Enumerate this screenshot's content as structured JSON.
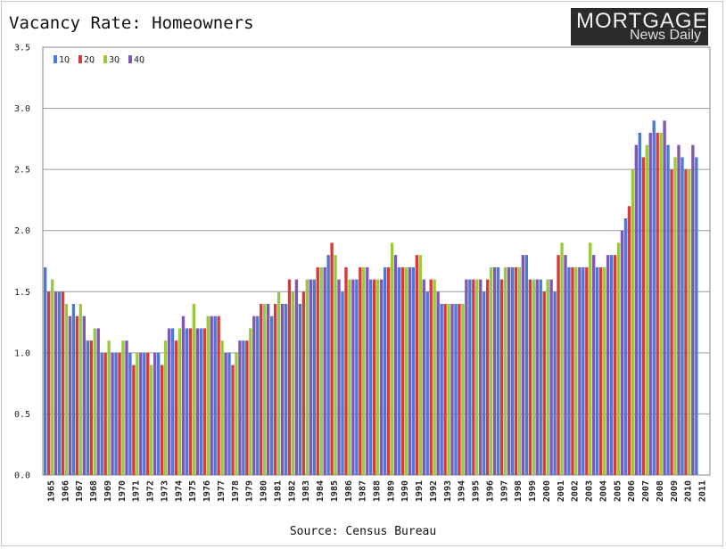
{
  "title": "Vacancy Rate: Homeowners",
  "logo": {
    "line1": "MORTGAGE",
    "line2": "News Daily"
  },
  "source": "Source: Census Bureau",
  "colors": {
    "1Q": "#4a7ad6",
    "2Q": "#d63a3a",
    "3Q": "#9cc83c",
    "4Q": "#7e57b8",
    "grid": "#9a9a9a",
    "axis": "#888888"
  },
  "chart_data": {
    "type": "bar",
    "title": "Vacancy Rate: Homeowners",
    "xlabel": "",
    "ylabel": "",
    "ylim": [
      0,
      3.5
    ],
    "yticks": [
      "0.0",
      "0.5",
      "1.0",
      "1.5",
      "2.0",
      "2.5",
      "3.0",
      "3.5"
    ],
    "grid": true,
    "legend_position": "top-left",
    "categories": [
      "1965",
      "1966",
      "1967",
      "1968",
      "1969",
      "1970",
      "1971",
      "1972",
      "1973",
      "1974",
      "1975",
      "1976",
      "1977",
      "1978",
      "1979",
      "1980",
      "1981",
      "1982",
      "1983",
      "1984",
      "1985",
      "1986",
      "1987",
      "1988",
      "1989",
      "1990",
      "1991",
      "1992",
      "1993",
      "1994",
      "1995",
      "1996",
      "1997",
      "1998",
      "1999",
      "2000",
      "2001",
      "2002",
      "2003",
      "2004",
      "2005",
      "2006",
      "2007",
      "2008",
      "2009",
      "2010",
      "2011"
    ],
    "series": [
      {
        "name": "1Q",
        "values": [
          1.7,
          1.5,
          1.4,
          1.1,
          1.0,
          1.0,
          1.0,
          1.0,
          1.0,
          1.2,
          1.2,
          1.2,
          1.3,
          1.0,
          1.1,
          1.3,
          1.3,
          1.4,
          1.4,
          1.6,
          1.8,
          1.5,
          1.6,
          1.6,
          1.7,
          1.7,
          1.7,
          1.5,
          1.4,
          1.4,
          1.6,
          1.5,
          1.7,
          1.7,
          1.8,
          1.6,
          1.5,
          1.7,
          1.7,
          1.7,
          1.8,
          2.1,
          2.8,
          2.9,
          2.7,
          2.6,
          2.6
        ]
      },
      {
        "name": "2Q",
        "values": [
          1.5,
          1.5,
          1.3,
          1.1,
          1.0,
          1.0,
          0.9,
          1.0,
          0.9,
          1.1,
          1.2,
          1.2,
          1.3,
          0.9,
          1.1,
          1.4,
          1.4,
          1.6,
          1.5,
          1.7,
          1.9,
          1.7,
          1.7,
          1.6,
          1.7,
          1.7,
          1.8,
          1.6,
          1.4,
          1.4,
          1.6,
          1.6,
          1.6,
          1.7,
          1.6,
          1.5,
          1.8,
          1.7,
          1.7,
          1.7,
          1.8,
          2.2,
          2.6,
          2.8,
          2.5,
          2.5,
          null
        ]
      },
      {
        "name": "3Q",
        "values": [
          1.6,
          1.4,
          1.4,
          1.2,
          1.1,
          1.1,
          1.0,
          0.9,
          1.1,
          1.2,
          1.4,
          1.3,
          1.1,
          1.0,
          1.2,
          1.4,
          1.5,
          1.5,
          1.6,
          1.7,
          1.8,
          1.6,
          1.7,
          1.6,
          1.9,
          1.7,
          1.8,
          1.6,
          1.4,
          1.4,
          1.6,
          1.7,
          1.7,
          1.7,
          1.6,
          1.6,
          1.9,
          1.7,
          1.9,
          1.7,
          1.9,
          2.5,
          2.7,
          2.8,
          2.6,
          2.5,
          null
        ]
      },
      {
        "name": "4Q",
        "values": [
          1.5,
          1.3,
          1.3,
          1.2,
          1.0,
          1.1,
          1.0,
          1.0,
          1.2,
          1.3,
          1.2,
          1.3,
          1.0,
          1.1,
          1.3,
          1.4,
          1.4,
          1.6,
          1.6,
          1.7,
          1.6,
          1.6,
          1.7,
          1.6,
          1.8,
          1.7,
          1.6,
          1.5,
          1.4,
          1.6,
          1.6,
          1.7,
          1.7,
          1.8,
          1.6,
          1.6,
          1.8,
          1.7,
          1.8,
          1.8,
          2.0,
          2.7,
          2.8,
          2.9,
          2.7,
          2.7,
          null
        ]
      }
    ]
  }
}
